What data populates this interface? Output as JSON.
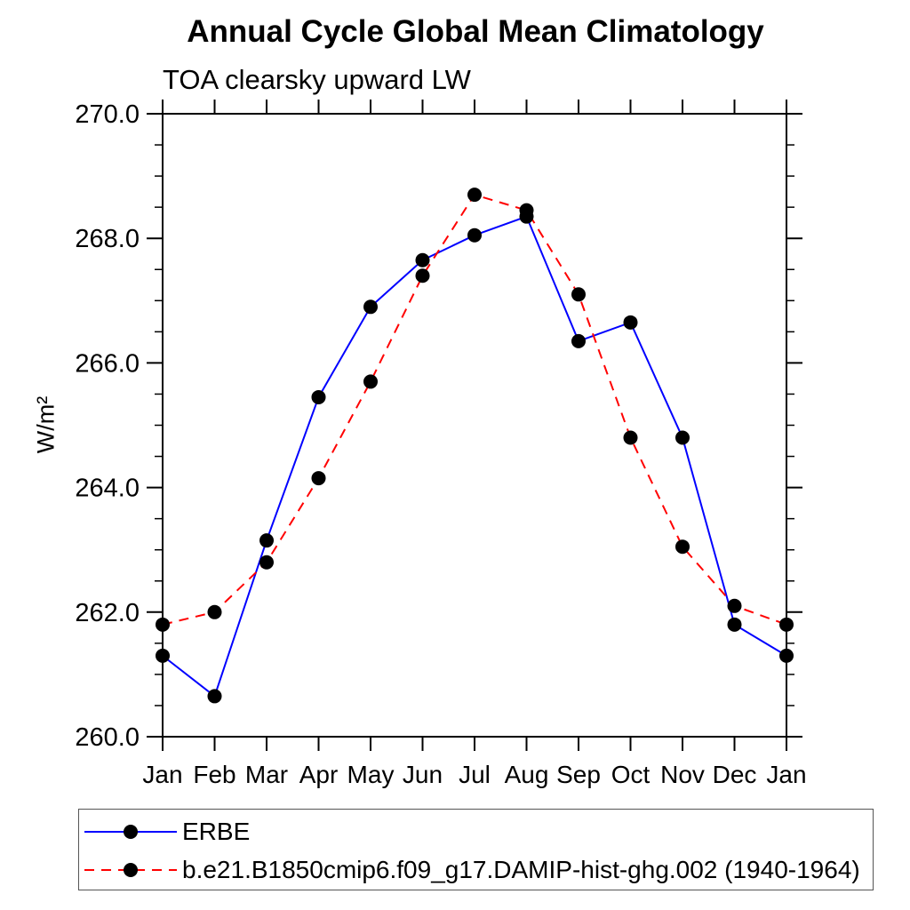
{
  "chart_data": {
    "type": "line",
    "title": "Annual Cycle Global Mean Climatology",
    "subtitle": "TOA clearsky upward LW",
    "ylabel": "W/m²",
    "xlabel": "",
    "categories": [
      "Jan",
      "Feb",
      "Mar",
      "Apr",
      "May",
      "Jun",
      "Jul",
      "Aug",
      "Sep",
      "Oct",
      "Nov",
      "Dec",
      "Jan"
    ],
    "ylim": [
      260.0,
      270.0
    ],
    "ytick_major_interval": 2.0,
    "ytick_minor_interval": 0.5,
    "ytick_label_format": "one-decimal",
    "grid": false,
    "legend_position": "bottom-left",
    "frame_color": "#000000",
    "marker_color": "#000000",
    "series": [
      {
        "name": "ERBE",
        "color": "#0000ff",
        "line_style": "solid",
        "marker": "circle",
        "values": [
          261.3,
          260.65,
          263.15,
          265.45,
          266.9,
          267.65,
          268.05,
          268.35,
          266.35,
          266.65,
          264.8,
          261.8,
          261.3
        ]
      },
      {
        "name": "b.e21.B1850cmip6.f09_g17.DAMIP-hist-ghg.002 (1940-1964)",
        "color": "#ff0000",
        "line_style": "dashed",
        "marker": "circle",
        "values": [
          261.8,
          262.0,
          262.8,
          264.15,
          265.7,
          267.4,
          268.7,
          268.45,
          267.1,
          264.8,
          263.05,
          262.1,
          261.8
        ]
      }
    ]
  }
}
